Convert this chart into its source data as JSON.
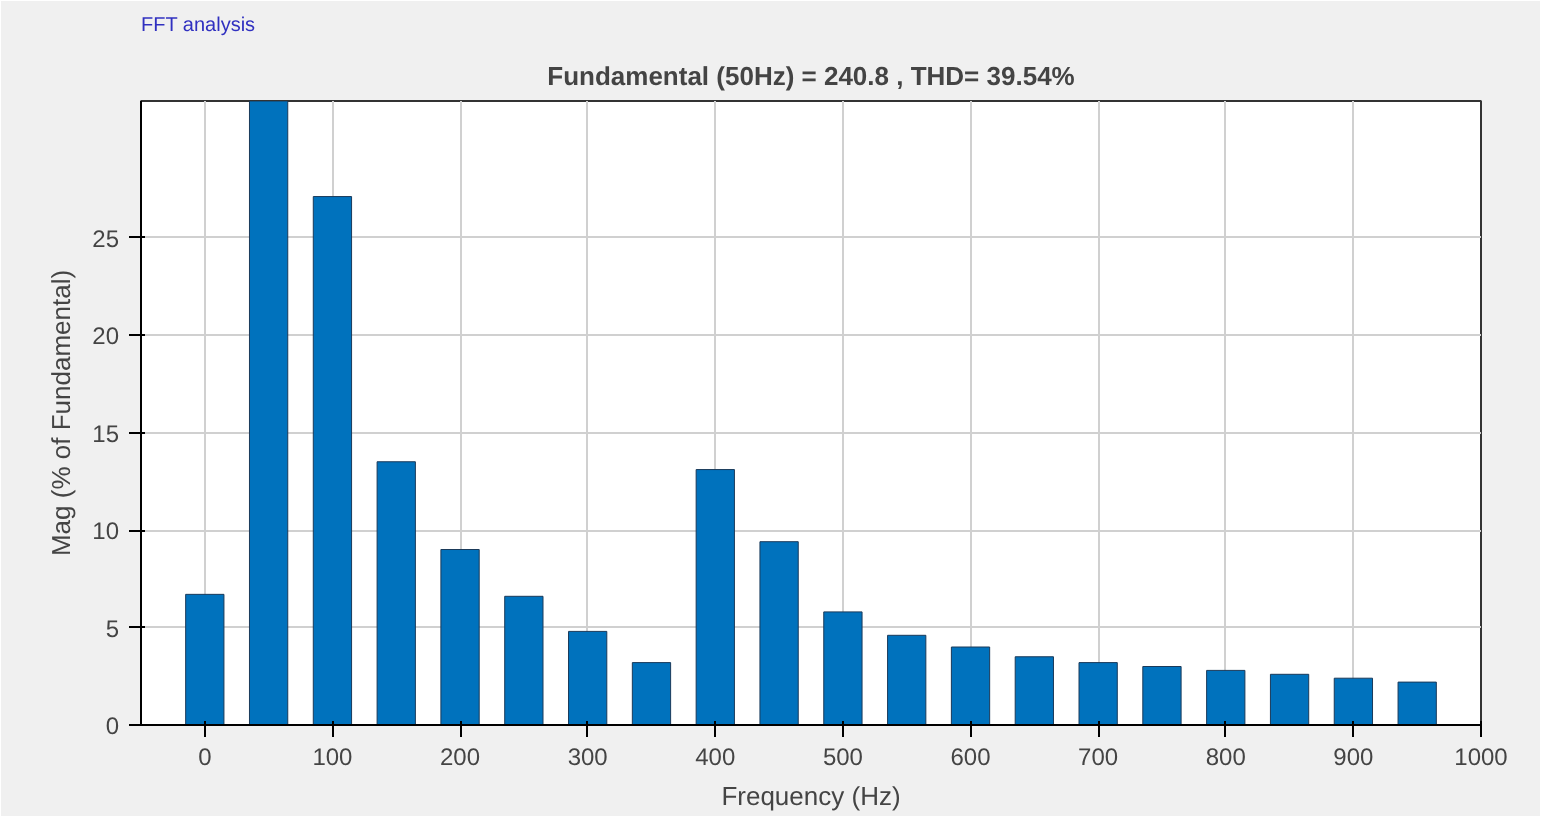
{
  "chart_data": {
    "type": "bar",
    "title": "Fundamental (50Hz) = 240.8 , THD= 39.54%",
    "xlabel": "Frequency (Hz)",
    "ylabel": "Mag (% of Fundamental)",
    "annotations": [
      "FFT analysis"
    ],
    "x": [
      0,
      50,
      100,
      150,
      200,
      250,
      300,
      350,
      400,
      450,
      500,
      550,
      600,
      650,
      700,
      750,
      800,
      850,
      900,
      950
    ],
    "values": [
      6.7,
      32,
      27.1,
      13.5,
      9.0,
      6.6,
      4.8,
      3.2,
      13.1,
      9.4,
      5.8,
      4.6,
      4.0,
      3.5,
      3.2,
      3.0,
      2.8,
      2.6,
      2.4,
      2.2
    ],
    "color": "#0072bd",
    "xlim": [
      -50,
      1000
    ],
    "xticks": [
      0,
      100,
      200,
      300,
      400,
      500,
      600,
      700,
      800,
      900,
      1000
    ],
    "ylim": [
      0,
      32
    ],
    "yticks": [
      0,
      5,
      10,
      15,
      20,
      25
    ],
    "grid": true
  }
}
